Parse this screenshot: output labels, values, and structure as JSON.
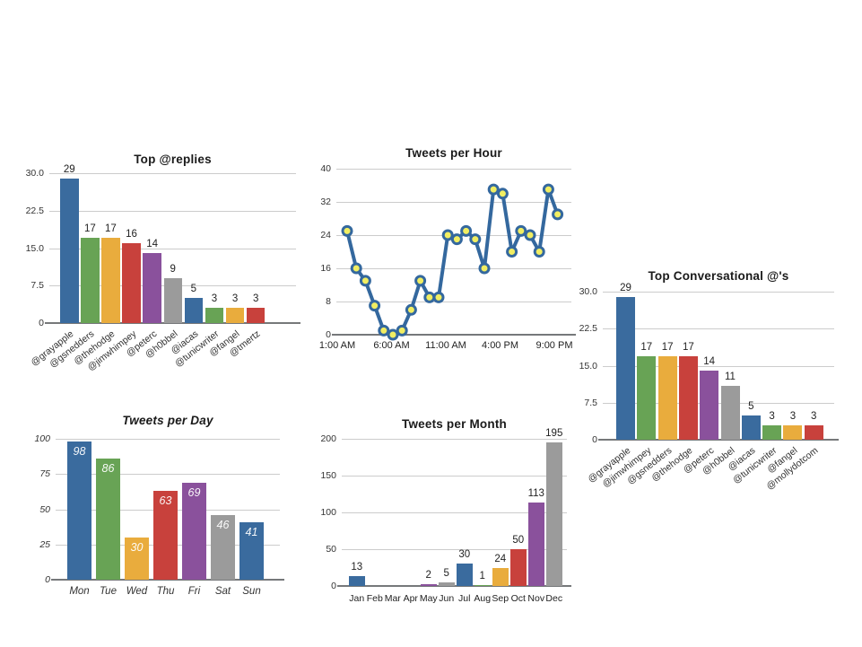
{
  "page": {
    "background_color": "#ffffff"
  },
  "palette": {
    "series_cycle": [
      "#3A6B9E",
      "#68A355",
      "#E9AC3D",
      "#C8413C",
      "#8A519C",
      "#9B9B9B"
    ],
    "line_color": "#34689E",
    "point_fill": "#F1EE62",
    "gridline_color": "#CCCCCC",
    "baseline_color": "#76787A"
  },
  "chart_data": [
    {
      "type": "bar",
      "title": "Top @replies",
      "categories": [
        "@grayapple",
        "@gsnedders",
        "@thehodge",
        "@jimwhimpey",
        "@peterc",
        "@h0bbel",
        "@iacas",
        "@tunicwriter",
        "@fangel",
        "@tmertz"
      ],
      "values": [
        29,
        17,
        17,
        16,
        14,
        9,
        5,
        3,
        3,
        3
      ],
      "ylim": [
        0,
        30
      ],
      "ytick_labels": [
        "30.0",
        "22.5",
        "15.0",
        "7.5",
        "0"
      ],
      "ytick_values": [
        30,
        22.5,
        15,
        7.5,
        0
      ],
      "value_label_position": "above",
      "category_label_style": "rotated",
      "grid": true,
      "legend": "none"
    },
    {
      "type": "line",
      "title": "Tweets per Hour",
      "values": [
        25,
        16,
        13,
        7,
        1,
        0,
        1,
        6,
        13,
        9,
        9,
        24,
        23,
        25,
        23,
        16,
        35,
        34,
        20,
        25,
        24,
        20,
        35,
        29
      ],
      "xtick_labels": [
        "1:00 AM",
        "6:00 AM",
        "11:00 AM",
        "4:00 PM",
        "9:00 PM"
      ],
      "ylim": [
        0,
        40
      ],
      "ytick_labels": [
        "40",
        "32",
        "24",
        "16",
        "8",
        "0"
      ],
      "ytick_values": [
        40,
        32,
        24,
        16,
        8,
        0
      ],
      "grid": true,
      "legend": "none"
    },
    {
      "type": "bar",
      "title": "Top Conversational @'s",
      "categories": [
        "@grayapple",
        "@jimwhimpey",
        "@gsnedders",
        "@thehodge",
        "@peterc",
        "@h0bbel",
        "@iacas",
        "@tunicwriter",
        "@fangel",
        "@mollydotcom"
      ],
      "values": [
        29,
        17,
        17,
        17,
        14,
        11,
        5,
        3,
        3,
        3
      ],
      "ylim": [
        0,
        30
      ],
      "ytick_labels": [
        "30.0",
        "22.5",
        "15.0",
        "7.5",
        "0"
      ],
      "ytick_values": [
        30,
        22.5,
        15,
        7.5,
        0
      ],
      "value_label_position": "above",
      "category_label_style": "rotated",
      "grid": true,
      "legend": "none"
    },
    {
      "type": "bar",
      "title": "Tweets per Day",
      "title_italic": true,
      "categories": [
        "Mon",
        "Tue",
        "Wed",
        "Thu",
        "Fri",
        "Sat",
        "Sun"
      ],
      "values": [
        98,
        86,
        30,
        63,
        69,
        46,
        41
      ],
      "ylim": [
        0,
        100
      ],
      "ytick_labels": [
        "100",
        "75",
        "50",
        "25",
        "0"
      ],
      "ytick_values": [
        100,
        75,
        50,
        25,
        0
      ],
      "value_label_position": "inside",
      "category_label_style": "italic",
      "grid": true,
      "legend": "none"
    },
    {
      "type": "bar",
      "title": "Tweets per Month",
      "categories": [
        "Jan",
        "Feb",
        "Mar",
        "Apr",
        "May",
        "Jun",
        "Jul",
        "Aug",
        "Sep",
        "Oct",
        "Nov",
        "Dec"
      ],
      "values": [
        13,
        0,
        0,
        0,
        2,
        5,
        30,
        1,
        24,
        50,
        113,
        195
      ],
      "ylim": [
        0,
        200
      ],
      "ytick_labels": [
        "200",
        "150",
        "100",
        "50",
        "0"
      ],
      "ytick_values": [
        200,
        150,
        100,
        50,
        0
      ],
      "value_label_position": "above",
      "hide_zero_labels": true,
      "category_label_style": "horizontal",
      "grid": true,
      "legend": "none"
    }
  ]
}
